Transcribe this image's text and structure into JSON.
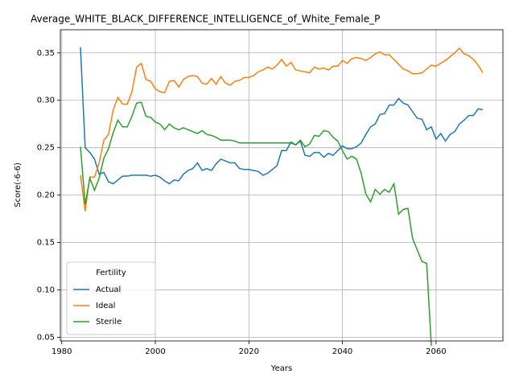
{
  "chart_data": {
    "type": "line",
    "title": "Average_WHITE_BLACK_DIFFERENCE_INTELLIGENCE_of_White_Female_P",
    "xlabel": "Years",
    "ylabel": "Score(-6-6)",
    "legend_title": "Fertility",
    "legend": "lower left",
    "grid": true,
    "xlim": [
      1979.7,
      2074.3
    ],
    "ylim": [
      0.0462,
      0.3744
    ],
    "xticks": [
      1980,
      2000,
      2020,
      2040,
      2060
    ],
    "yticks": [
      0.05,
      {
        "value": 0.1,
        "label": "0.10"
      },
      0.15,
      {
        "value": 0.2,
        "label": "0.20"
      },
      0.25,
      {
        "value": 0.3,
        "label": "0.30"
      },
      0.35
    ],
    "x": [
      1984,
      1985,
      1986,
      1987,
      1988,
      1989,
      1990,
      1991,
      1992,
      1993,
      1994,
      1995,
      1996,
      1997,
      1998,
      1999,
      2000,
      2001,
      2002,
      2003,
      2004,
      2005,
      2006,
      2007,
      2008,
      2009,
      2010,
      2011,
      2012,
      2013,
      2014,
      2015,
      2016,
      2017,
      2018,
      2019,
      2020,
      2021,
      2022,
      2023,
      2024,
      2025,
      2026,
      2027,
      2028,
      2029,
      2030,
      2031,
      2032,
      2033,
      2034,
      2035,
      2036,
      2037,
      2038,
      2039,
      2040,
      2041,
      2042,
      2043,
      2044,
      2045,
      2046,
      2047,
      2048,
      2049,
      2050,
      2051,
      2052,
      2053,
      2054,
      2055,
      2056,
      2057,
      2058,
      2059,
      2060,
      2061,
      2062,
      2063,
      2064,
      2065,
      2066,
      2067,
      2068,
      2069,
      2070
    ],
    "series": [
      {
        "name": "Actual",
        "color": "#1f77b4",
        "values": [
          0.356,
          0.25,
          0.245,
          0.238,
          0.222,
          0.224,
          0.214,
          0.212,
          0.216,
          0.22,
          0.22,
          0.221,
          0.221,
          0.221,
          0.221,
          0.22,
          0.221,
          0.219,
          0.215,
          0.212,
          0.216,
          0.215,
          0.222,
          0.226,
          0.228,
          0.234,
          0.226,
          0.228,
          0.226,
          0.233,
          0.238,
          0.236,
          0.234,
          0.234,
          0.228,
          0.227,
          0.227,
          0.226,
          0.225,
          0.221,
          0.223,
          0.227,
          0.231,
          0.247,
          0.247,
          0.256,
          0.253,
          0.257,
          0.242,
          0.241,
          0.245,
          0.245,
          0.24,
          0.244,
          0.242,
          0.247,
          0.252,
          0.249,
          0.249,
          0.251,
          0.255,
          0.264,
          0.272,
          0.275,
          0.285,
          0.286,
          0.295,
          0.295,
          0.302,
          0.297,
          0.295,
          0.288,
          0.281,
          0.28,
          0.269,
          0.272,
          0.259,
          0.265,
          0.257,
          0.264,
          0.267,
          0.275,
          0.279,
          0.284,
          0.284,
          0.291,
          0.29
        ]
      },
      {
        "name": "Ideal",
        "color": "#ff7f0e",
        "values": [
          0.221,
          0.183,
          0.219,
          0.219,
          0.234,
          0.258,
          0.264,
          0.29,
          0.303,
          0.296,
          0.296,
          0.309,
          0.335,
          0.339,
          0.322,
          0.32,
          0.312,
          0.309,
          0.308,
          0.32,
          0.321,
          0.314,
          0.322,
          0.325,
          0.326,
          0.325,
          0.318,
          0.317,
          0.323,
          0.317,
          0.325,
          0.318,
          0.316,
          0.32,
          0.321,
          0.324,
          0.324,
          0.326,
          0.33,
          0.332,
          0.335,
          0.333,
          0.337,
          0.343,
          0.336,
          0.34,
          0.332,
          0.331,
          0.33,
          0.329,
          0.335,
          0.333,
          0.334,
          0.332,
          0.336,
          0.336,
          0.342,
          0.339,
          0.344,
          0.345,
          0.344,
          0.342,
          0.345,
          0.349,
          0.351,
          0.348,
          0.348,
          0.343,
          0.338,
          0.333,
          0.331,
          0.328,
          0.328,
          0.329,
          0.333,
          0.337,
          0.336,
          0.339,
          0.342,
          0.346,
          0.35,
          0.355,
          0.349,
          0.347,
          0.343,
          0.337,
          0.329
        ]
      },
      {
        "name": "Sterile",
        "color": "#2ca02c",
        "values": [
          0.251,
          0.19,
          0.218,
          0.205,
          0.218,
          0.239,
          0.249,
          0.266,
          0.279,
          0.272,
          0.272,
          0.283,
          0.297,
          0.298,
          0.283,
          0.282,
          0.277,
          0.275,
          0.269,
          0.275,
          0.271,
          0.269,
          0.271,
          0.269,
          0.267,
          0.265,
          0.268,
          0.264,
          0.263,
          0.261,
          0.258,
          0.258,
          0.258,
          0.257,
          0.255,
          0.255,
          0.255,
          0.255,
          0.255,
          0.255,
          0.255,
          0.255,
          0.255,
          0.255,
          0.255,
          0.255,
          0.253,
          0.258,
          0.251,
          0.254,
          0.263,
          0.262,
          0.268,
          0.267,
          0.261,
          0.257,
          0.247,
          0.238,
          0.241,
          0.238,
          0.223,
          0.201,
          0.193,
          0.206,
          0.201,
          0.206,
          0.203,
          0.212,
          0.18,
          0.185,
          0.186,
          0.154,
          0.142,
          0.13,
          0.128,
          0.041,
          null,
          null,
          null,
          null,
          null,
          null,
          null,
          null,
          null,
          null,
          null
        ]
      }
    ]
  }
}
